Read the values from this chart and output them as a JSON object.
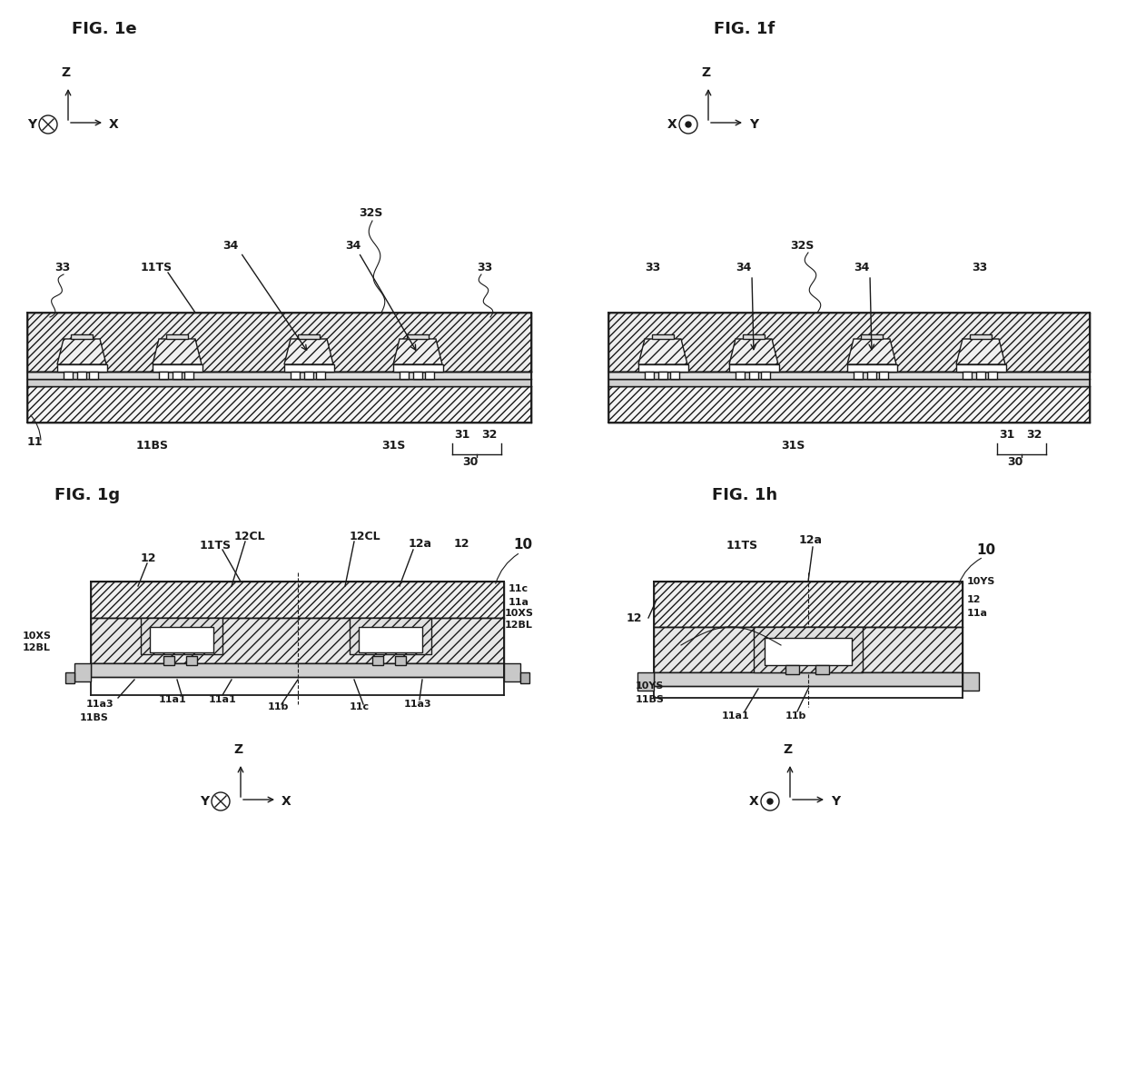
{
  "bg_color": "#ffffff",
  "lc": "#1a1a1a",
  "lw": 1.0,
  "fig1e_title": "FIG. 1e",
  "fig1f_title": "FIG. 1f",
  "fig1g_title": "FIG. 1g",
  "fig1h_title": "FIG. 1h",
  "title_fontsize": 13,
  "label_fontsize": 9,
  "label_fontsize_sm": 8,
  "axis_label_fontsize": 10
}
